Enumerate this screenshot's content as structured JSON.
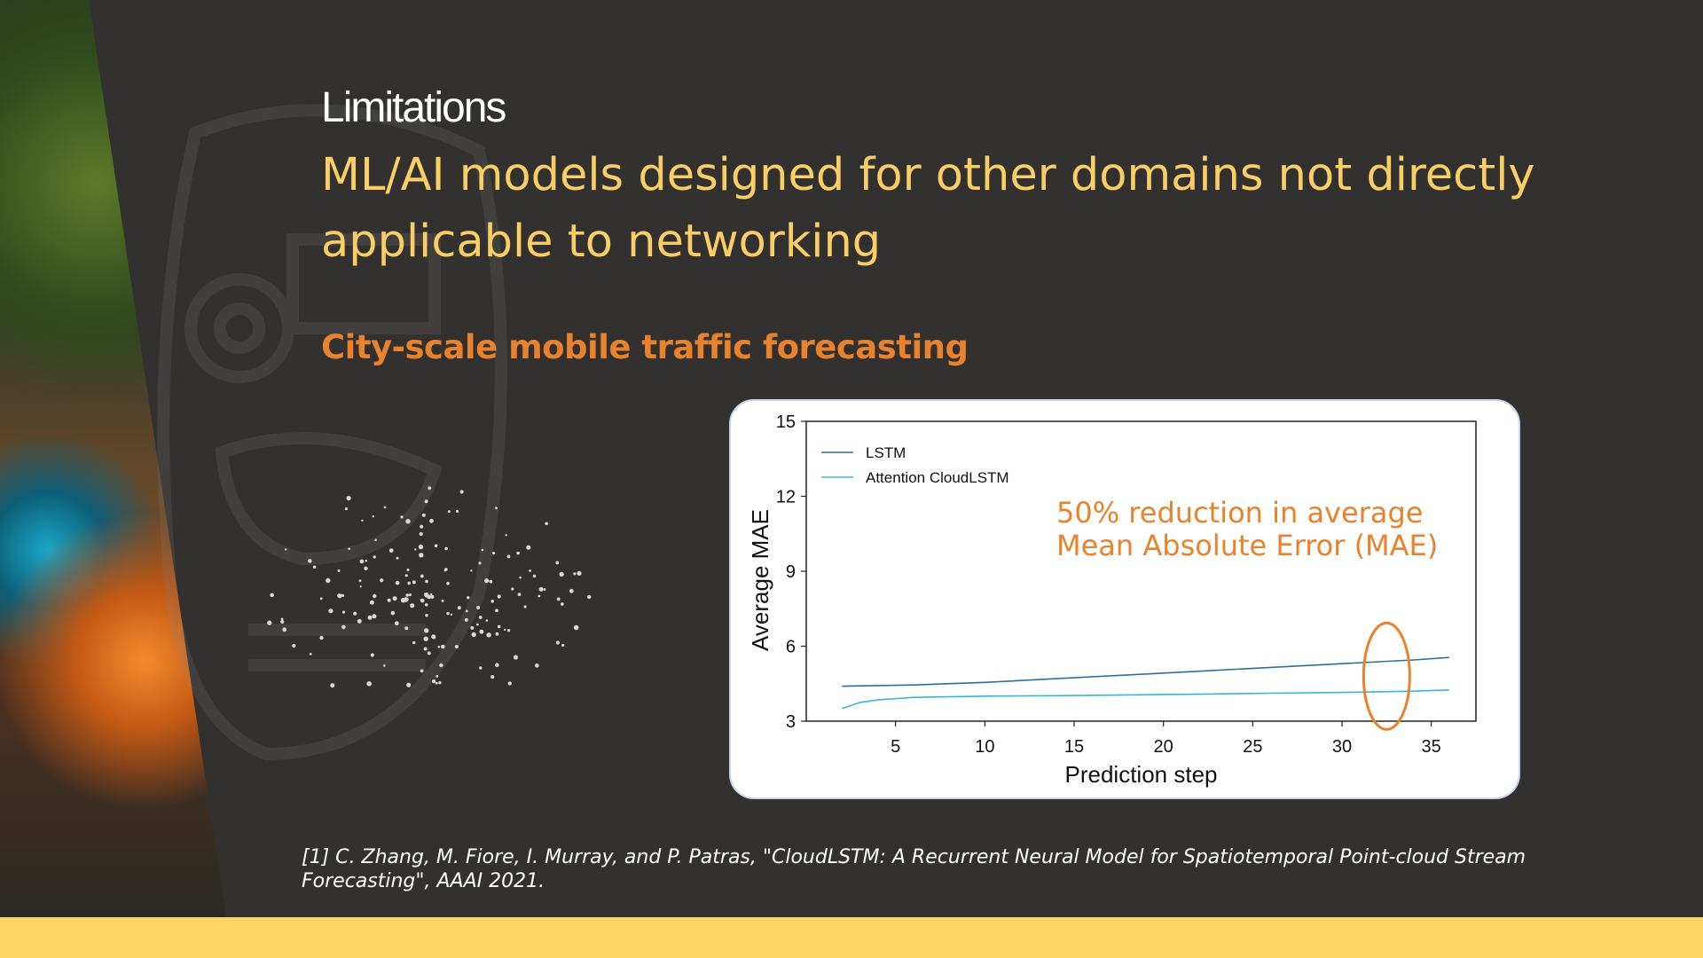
{
  "slide": {
    "section_label": "Limitations",
    "title": "ML/AI models designed for other domains not directly applicable to networking",
    "subtitle": "City-scale mobile traffic forecasting",
    "citation": "[1] C. Zhang, M. Fiore, I. Murray, and P. Patras, \"CloudLSTM: A Recurrent Neural Model for Spatiotemporal Point-cloud Stream Forecasting\", AAAI 2021."
  },
  "colors": {
    "background": "#333130",
    "title": "#f9ce64",
    "subtitle": "#e8822c",
    "annotation": "#e8822c",
    "bottom_bar": "#fed466",
    "lstm": "#2f6f9e",
    "attention": "#33b8d6"
  },
  "chart_data": {
    "type": "line",
    "xlabel": "Prediction step",
    "ylabel": "Average MAE",
    "xlim": [
      0,
      37.5
    ],
    "ylim": [
      3,
      15
    ],
    "xticks": [
      5,
      10,
      15,
      20,
      25,
      30,
      35
    ],
    "yticks": [
      3,
      6,
      9,
      12,
      15
    ],
    "grid": false,
    "legend_position": "top-left",
    "annotation": "50% reduction in average Mean Absolute Error (MAE)",
    "highlight": "ellipse around prediction steps 31–34",
    "series": [
      {
        "name": "LSTM",
        "x": [
          2,
          6,
          10,
          14,
          18,
          22,
          26,
          30,
          34,
          36
        ],
        "y": [
          4.4,
          4.45,
          4.55,
          4.7,
          4.85,
          5.0,
          5.15,
          5.3,
          5.45,
          5.55
        ]
      },
      {
        "name": "Attention CloudLSTM",
        "x": [
          2,
          3,
          4,
          6,
          10,
          14,
          18,
          22,
          26,
          30,
          34,
          36
        ],
        "y": [
          3.5,
          3.75,
          3.85,
          3.95,
          4.0,
          4.02,
          4.05,
          4.08,
          4.12,
          4.15,
          4.2,
          4.25
        ]
      }
    ]
  }
}
